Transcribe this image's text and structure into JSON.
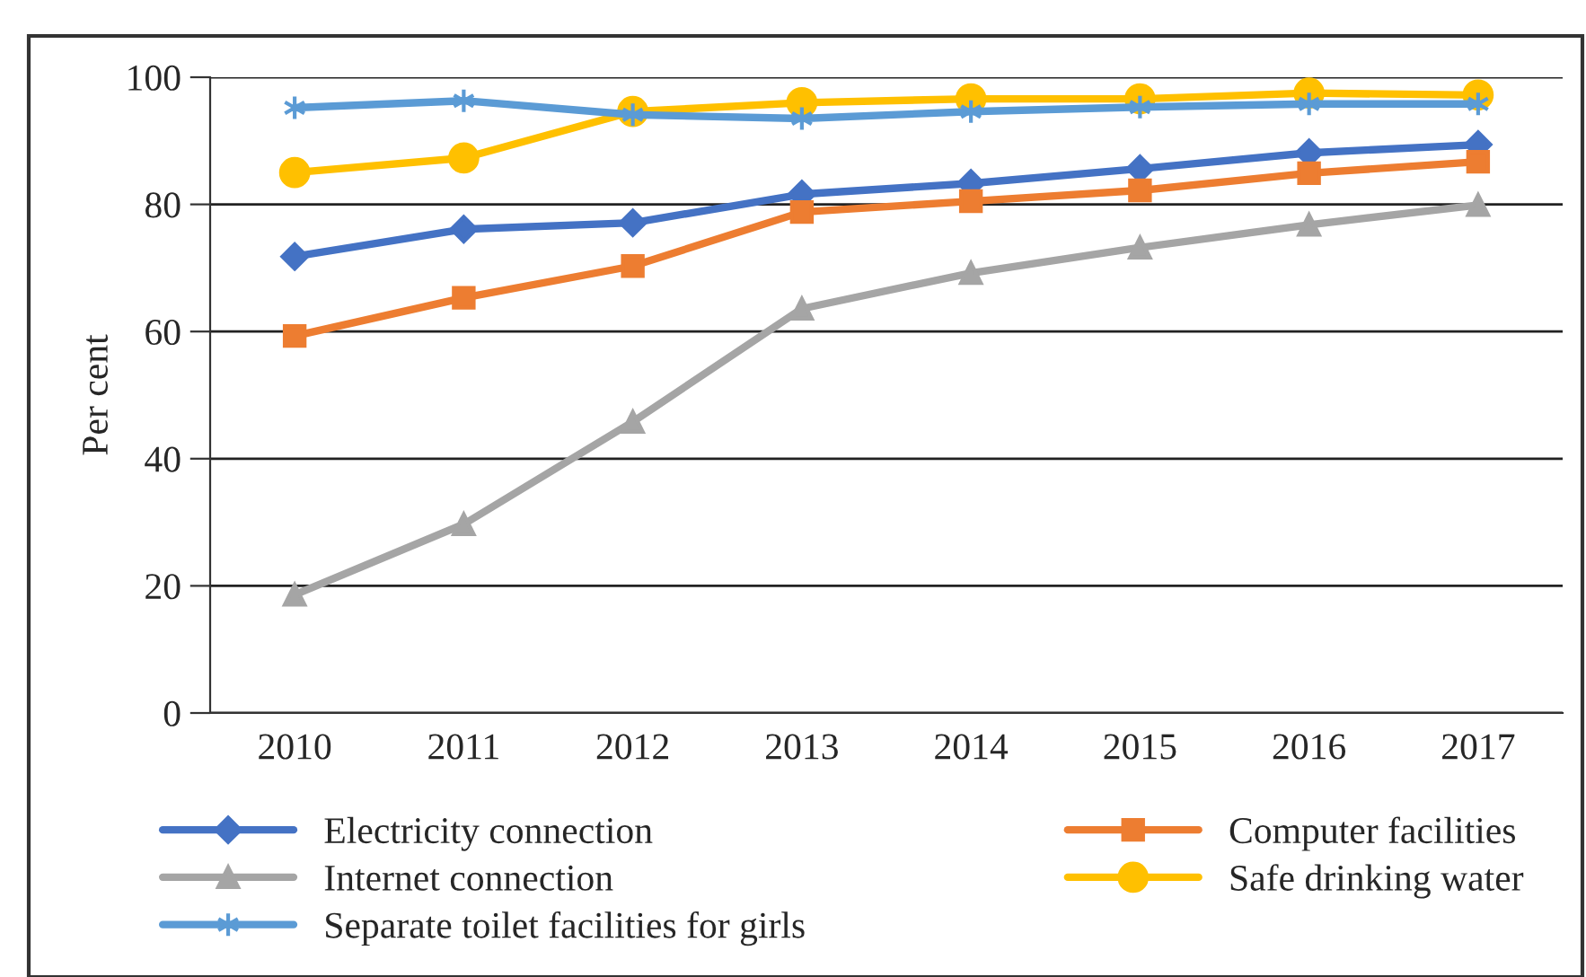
{
  "chart_data": {
    "type": "line",
    "ylabel": "Per cent",
    "categories": [
      "2010",
      "2011",
      "2012",
      "2013",
      "2014",
      "2015",
      "2016",
      "2017"
    ],
    "series": [
      {
        "name": "Electricity connection",
        "color": "#4472c4",
        "marker": "diamond",
        "values": [
          71.8,
          76.1,
          77.1,
          81.6,
          83.3,
          85.6,
          88.1,
          89.4
        ]
      },
      {
        "name": "Computer facilities",
        "color": "#ed7d31",
        "marker": "square",
        "values": [
          59.3,
          65.3,
          70.3,
          78.8,
          80.5,
          82.2,
          84.9,
          86.7
        ]
      },
      {
        "name": "Internet connection",
        "color": "#a5a5a5",
        "marker": "triangle",
        "values": [
          18.6,
          29.7,
          45.8,
          63.6,
          69.2,
          73.2,
          76.8,
          79.9
        ]
      },
      {
        "name": "Safe drinking water",
        "color": "#ffc000",
        "marker": "circle",
        "values": [
          85.0,
          87.3,
          94.6,
          96.0,
          96.6,
          96.6,
          97.5,
          97.2
        ]
      },
      {
        "name": "Separate toilet facilities for girls",
        "color": "#5b9bd5",
        "marker": "cross",
        "values": [
          95.2,
          96.3,
          94.1,
          93.5,
          94.6,
          95.3,
          95.8,
          95.8
        ]
      }
    ],
    "ylim": [
      0,
      100
    ],
    "yticks": [
      0,
      20,
      40,
      60,
      80,
      100
    ],
    "grid": "y",
    "legend": "bottom",
    "line_style": "solid"
  }
}
